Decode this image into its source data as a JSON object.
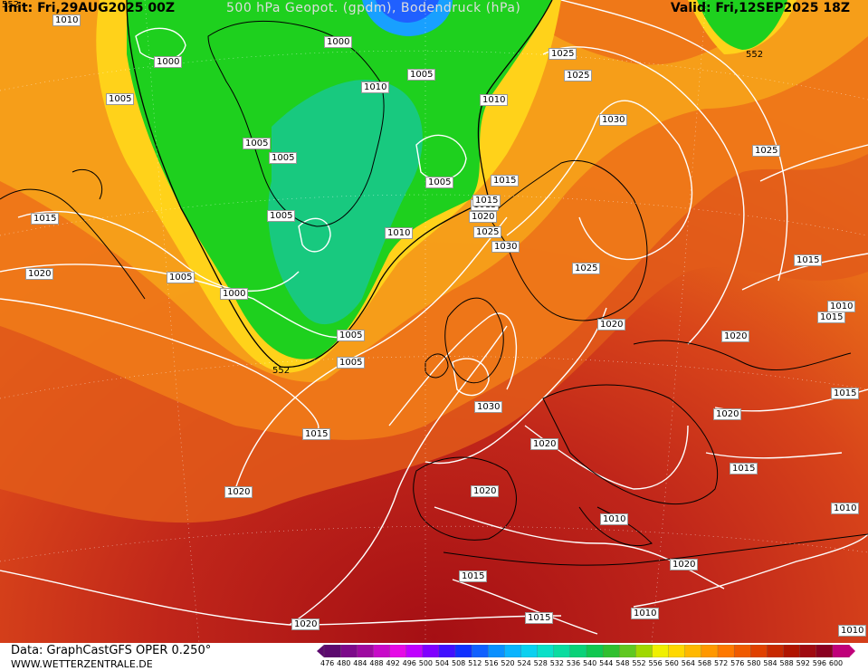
{
  "header": {
    "init": "Init: Fri,29AUG2025 00Z",
    "title": "500 hPa Geopot. (gpdm), Bodendruck (hPa)",
    "valid": "Valid: Fri,12SEP2025 18Z"
  },
  "footer": {
    "data_source": "Data: GraphCastGFS OPER 0.250°",
    "site": "WWW.WETTERZENTRALE.DE"
  },
  "legend": {
    "ticks": [
      "476",
      "480",
      "484",
      "488",
      "492",
      "496",
      "500",
      "504",
      "508",
      "512",
      "516",
      "520",
      "524",
      "528",
      "532",
      "536",
      "540",
      "544",
      "548",
      "552",
      "556",
      "560",
      "564",
      "568",
      "572",
      "576",
      "580",
      "584",
      "588",
      "592",
      "596",
      "600"
    ],
    "colors": [
      "#5c0a6e",
      "#7d0a8a",
      "#9e0aa0",
      "#c80ac8",
      "#e60ae6",
      "#c000ff",
      "#8000ff",
      "#4010ff",
      "#1030ff",
      "#1060ff",
      "#0a90ff",
      "#0ab4ff",
      "#0ad0f0",
      "#0ae0c8",
      "#0adca0",
      "#0ad278",
      "#10c850",
      "#30c030",
      "#60c820",
      "#a0d800",
      "#f0f000",
      "#ffd800",
      "#ffb800",
      "#ff9800",
      "#ff7800",
      "#f05a00",
      "#e04000",
      "#c82800",
      "#b01400",
      "#a00a10",
      "#8a0020",
      "#c0007a"
    ]
  },
  "pressure_labels": [
    "1010",
    "1000",
    "1000",
    "1005",
    "1005",
    "1010",
    "1005",
    "1005",
    "1005",
    "1005",
    "1020",
    "1025",
    "1030",
    "1025",
    "552",
    "1005",
    "1015",
    "1010",
    "1015",
    "1020",
    "1025",
    "1030",
    "1025",
    "1005",
    "1010",
    "1020",
    "1020",
    "1015",
    "1010",
    "1015",
    "1000",
    "1005",
    "552",
    "1025",
    "1030",
    "1020",
    "1015",
    "1020",
    "1020",
    "1010",
    "1015",
    "1020",
    "1015",
    "1015",
    "1010",
    "1010",
    "1020",
    "1015",
    "1020",
    "1015",
    "1010",
    "1015",
    "1015",
    "552"
  ]
}
